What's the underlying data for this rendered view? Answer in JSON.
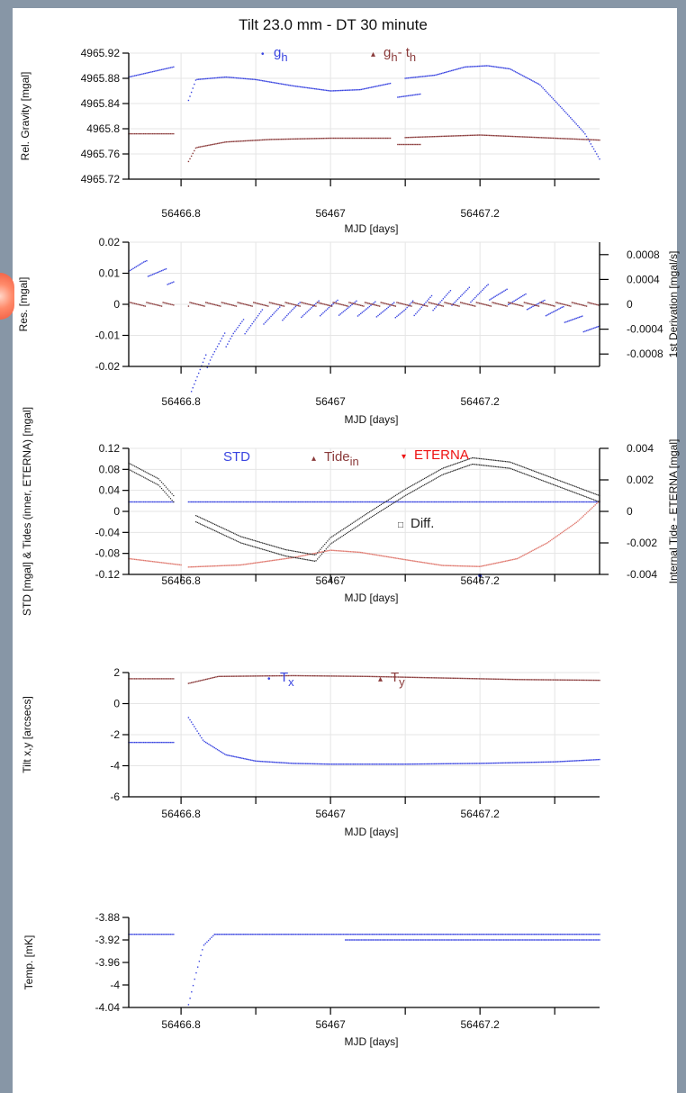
{
  "title": "Tilt 23.0 mm - DT 30 minute",
  "colors": {
    "blue": "#3a45e0",
    "brown": "#8a3a3a",
    "red": "#ee1111",
    "pink": "#e07a70",
    "black": "#222222",
    "grid": "#e5e5e5"
  },
  "chart_data": [
    {
      "type": "scatter",
      "id": "gravity",
      "xlabel": "MJD [days]",
      "ylabel": "Rel. Gravity [mgal]",
      "xlim": [
        56466.73,
        56467.36
      ],
      "ylim": [
        4965.72,
        4965.92
      ],
      "xticks": [
        56466.8,
        56467,
        56467.2
      ],
      "xtick_labels": [
        "56466.8",
        "56467",
        "56467.2"
      ],
      "yticks": [
        4965.72,
        4965.76,
        4965.8,
        4965.84,
        4965.88,
        4965.92
      ],
      "ytick_labels": [
        "4965.72",
        "4965.76",
        "4965.8",
        "4965.84",
        "4965.88",
        "4965.92"
      ],
      "grid": true,
      "legend": [
        {
          "marker": "•",
          "label": "g",
          "sub": "h",
          "color": "blue"
        },
        {
          "marker": "▴",
          "label": "g",
          "sub": "h",
          "mid": "- t",
          "sub2": "h",
          "color": "brown"
        }
      ],
      "series": [
        {
          "name": "gh",
          "color": "blue",
          "segments": [
            {
              "x": [
                56466.73,
                56466.79
              ],
              "y": [
                4965.882,
                4965.898
              ]
            },
            {
              "x": [
                56466.81,
                56466.82,
                56466.86,
                56466.9,
                56466.95,
                56467.0,
                56467.04,
                56467.08
              ],
              "y": [
                4965.845,
                4965.878,
                4965.882,
                4965.878,
                4965.868,
                4965.86,
                4965.862,
                4965.872
              ]
            },
            {
              "x": [
                56467.09,
                56467.12
              ],
              "y": [
                4965.85,
                4965.855
              ]
            },
            {
              "x": [
                56467.1,
                56467.14,
                56467.18,
                56467.21,
                56467.24,
                56467.28,
                56467.31,
                56467.34,
                56467.36
              ],
              "y": [
                4965.88,
                4965.885,
                4965.898,
                4965.9,
                4965.895,
                4965.87,
                4965.832,
                4965.793,
                4965.752
              ]
            }
          ]
        },
        {
          "name": "gh - th",
          "color": "brown",
          "segments": [
            {
              "x": [
                56466.73,
                56466.79
              ],
              "y": [
                4965.792,
                4965.792
              ]
            },
            {
              "x": [
                56466.81,
                56466.82,
                56466.86,
                56466.92,
                56467.0,
                56467.08
              ],
              "y": [
                4965.748,
                4965.77,
                4965.779,
                4965.783,
                4965.785,
                4965.785
              ]
            },
            {
              "x": [
                56467.09,
                56467.12
              ],
              "y": [
                4965.775,
                4965.775
              ]
            },
            {
              "x": [
                56467.1,
                56467.2,
                56467.36
              ],
              "y": [
                4965.786,
                4965.79,
                4965.782
              ]
            }
          ]
        }
      ]
    },
    {
      "type": "scatter",
      "id": "residual",
      "xlabel": "MJD [days]",
      "ylabel": "Res. [mgal]",
      "y2label": "1st Derivation [mgal/s]",
      "xlim": [
        56466.73,
        56467.36
      ],
      "ylim": [
        -0.02,
        0.02
      ],
      "xticks": [
        56466.8,
        56467,
        56467.2
      ],
      "xtick_labels": [
        "56466.8",
        "56467",
        "56467.2"
      ],
      "yticks": [
        -0.02,
        -0.01,
        0,
        0.01,
        0.02
      ],
      "ytick_labels": [
        "-0.02",
        "-0.01",
        "0",
        "0.01",
        "0.02"
      ],
      "y2lim": [
        -0.001,
        0.001
      ],
      "y2ticks": [
        -0.0008,
        -0.0004,
        0,
        0.0004,
        0.0008
      ],
      "y2tick_labels": [
        "-0.0008",
        "-0.0004",
        "0",
        "0.0004",
        "0.0008"
      ],
      "grid": true,
      "series": [
        {
          "name": "residual",
          "color": "blue",
          "segments": [
            {
              "x": [
                56466.73,
                56466.75,
                56466.77,
                56466.79
              ],
              "y": [
                0.013,
                0.012,
                0.01,
                0.008
              ]
            },
            {
              "x": [
                56466.81,
                56466.84,
                56466.87,
                56466.91,
                56466.95,
                56467.0,
                56467.1,
                56467.16,
                56467.21,
                56467.26,
                56467.31,
                56467.36
              ],
              "y": [
                -0.028,
                -0.016,
                -0.009,
                -0.004,
                -0.002,
                -0.001,
                -0.002,
                0.002,
                0.004,
                0.001,
                -0.003,
                -0.009
              ]
            }
          ]
        },
        {
          "name": "derivative",
          "color": "brown",
          "segments": [
            {
              "x": [
                56466.73,
                56466.79
              ],
              "y": [
                0.0,
                0.0
              ]
            },
            {
              "x": [
                56466.81,
                56467.36
              ],
              "y": [
                0.0,
                0.0
              ]
            }
          ]
        }
      ]
    },
    {
      "type": "scatter",
      "id": "tides",
      "xlabel": "MJD [days]",
      "ylabel": "STD [mgal] & Tides (inner, ETERNA) [mgal]",
      "y2label": "Internal Tide - ETERNA [mgal]",
      "xlim": [
        56466.73,
        56467.36
      ],
      "ylim": [
        -0.12,
        0.12
      ],
      "xticks": [
        56466.8,
        56467,
        56467.2
      ],
      "xtick_labels": [
        "56466.8",
        "56467",
        "56467.2"
      ],
      "yticks": [
        -0.12,
        -0.08,
        -0.04,
        0,
        0.04,
        0.08,
        0.12
      ],
      "ytick_labels": [
        "-0.12",
        "-0.08",
        "-0.04",
        "0",
        "0.04",
        "0.08",
        "0.12"
      ],
      "y2lim": [
        -0.004,
        0.004
      ],
      "y2ticks": [
        -0.004,
        -0.002,
        0,
        0.002,
        0.004
      ],
      "y2tick_labels": [
        "-0.004",
        "-0.002",
        "0",
        "0.002",
        "0.004"
      ],
      "grid": true,
      "legend": [
        {
          "label": "STD",
          "color": "blue"
        },
        {
          "marker": "▴",
          "label": "Tide",
          "sub": "in",
          "color": "brown"
        },
        {
          "marker": "▾",
          "label": "ETERNA",
          "color": "red"
        },
        {
          "marker": "□",
          "label": "Diff.",
          "color": "black"
        }
      ],
      "series": [
        {
          "name": "STD",
          "color": "blue",
          "segments": [
            {
              "x": [
                56466.73,
                56466.79
              ],
              "y": [
                0.018,
                0.018
              ]
            },
            {
              "x": [
                56466.81,
                56467.36
              ],
              "y": [
                0.018,
                0.018
              ]
            }
          ]
        },
        {
          "name": "Tide in",
          "color": "pink",
          "segments": [
            {
              "x": [
                56466.73,
                56466.8
              ],
              "y": [
                -0.09,
                -0.102
              ]
            },
            {
              "x": [
                56466.81,
                56466.88,
                56466.95,
                56467.0,
                56467.04,
                56467.1,
                56467.15,
                56467.2,
                56467.25,
                56467.29,
                56467.33,
                56467.36
              ],
              "y": [
                -0.106,
                -0.102,
                -0.088,
                -0.074,
                -0.078,
                -0.092,
                -0.103,
                -0.105,
                -0.09,
                -0.06,
                -0.02,
                0.02
              ]
            }
          ]
        },
        {
          "name": "Diff.",
          "color": "black",
          "segments": [
            {
              "x": [
                56466.73,
                56466.77,
                56466.79
              ],
              "y": [
                0.08,
                0.05,
                0.018
              ]
            },
            {
              "x": [
                56466.82,
                56466.88,
                56466.94,
                56466.98,
                56467.0,
                56467.05,
                56467.1,
                56467.15,
                56467.19,
                56467.24,
                56467.3,
                56467.36
              ],
              "y": [
                -0.02,
                -0.06,
                -0.085,
                -0.095,
                -0.062,
                -0.015,
                0.03,
                0.07,
                0.09,
                0.082,
                0.05,
                0.018
              ]
            }
          ]
        }
      ],
      "points": [
        {
          "x": 56467.2,
          "y": -0.122,
          "color": "blue"
        }
      ]
    },
    {
      "type": "scatter",
      "id": "tilt",
      "xlabel": "MJD [days]",
      "ylabel": "Tilt x,y [arcsecs]",
      "xlim": [
        56466.73,
        56467.36
      ],
      "ylim": [
        -6,
        2
      ],
      "xticks": [
        56466.8,
        56467,
        56467.2
      ],
      "xtick_labels": [
        "56466.8",
        "56467",
        "56467.2"
      ],
      "yticks": [
        -6,
        -4,
        -2,
        0,
        2
      ],
      "ytick_labels": [
        "-6",
        "-4",
        "-2",
        "0",
        "2"
      ],
      "grid": true,
      "legend": [
        {
          "marker": "•",
          "label": "T",
          "sub": "x",
          "color": "blue"
        },
        {
          "marker": "▴",
          "label": "T",
          "sub": "y",
          "color": "brown"
        }
      ],
      "series": [
        {
          "name": "Tx",
          "color": "blue",
          "segments": [
            {
              "x": [
                56466.73,
                56466.79
              ],
              "y": [
                -2.5,
                -2.5
              ]
            },
            {
              "x": [
                56466.81,
                56466.83,
                56466.86,
                56466.9,
                56466.95,
                56467.0,
                56467.1,
                56467.2,
                56467.3,
                56467.36
              ],
              "y": [
                -0.9,
                -2.4,
                -3.3,
                -3.7,
                -3.85,
                -3.9,
                -3.9,
                -3.85,
                -3.75,
                -3.6
              ]
            }
          ]
        },
        {
          "name": "Ty",
          "color": "brown",
          "segments": [
            {
              "x": [
                56466.73,
                56466.79
              ],
              "y": [
                1.6,
                1.6
              ]
            },
            {
              "x": [
                56466.81,
                56466.85,
                56466.95,
                56467.05,
                56467.15,
                56467.25,
                56467.36
              ],
              "y": [
                1.3,
                1.75,
                1.8,
                1.75,
                1.65,
                1.55,
                1.5
              ]
            }
          ]
        }
      ]
    },
    {
      "type": "scatter",
      "id": "temp",
      "xlabel": "MJD [days]",
      "ylabel": "Temp. [mK]",
      "xlim": [
        56466.73,
        56467.36
      ],
      "ylim": [
        -4.04,
        -3.88
      ],
      "xticks": [
        56466.8,
        56467,
        56467.2
      ],
      "xtick_labels": [
        "56466.8",
        "56467",
        "56467.2"
      ],
      "yticks": [
        -4.04,
        -4,
        -3.96,
        -3.92,
        -3.88
      ],
      "ytick_labels": [
        "-4.04",
        "-4",
        "-3.96",
        "-3.92",
        "-3.88"
      ],
      "grid": false,
      "series": [
        {
          "name": "temp",
          "color": "blue",
          "segments": [
            {
              "x": [
                56466.73,
                56466.79
              ],
              "y": [
                -3.91,
                -3.91
              ]
            },
            {
              "x": [
                56466.81,
                56466.82,
                56466.83,
                56466.845
              ],
              "y": [
                -4.035,
                -3.98,
                -3.93,
                -3.91
              ]
            },
            {
              "x": [
                56466.845,
                56467.36
              ],
              "y": [
                -3.91,
                -3.91
              ]
            },
            {
              "x": [
                56467.02,
                56467.36
              ],
              "y": [
                -3.92,
                -3.92
              ]
            }
          ]
        }
      ]
    }
  ]
}
